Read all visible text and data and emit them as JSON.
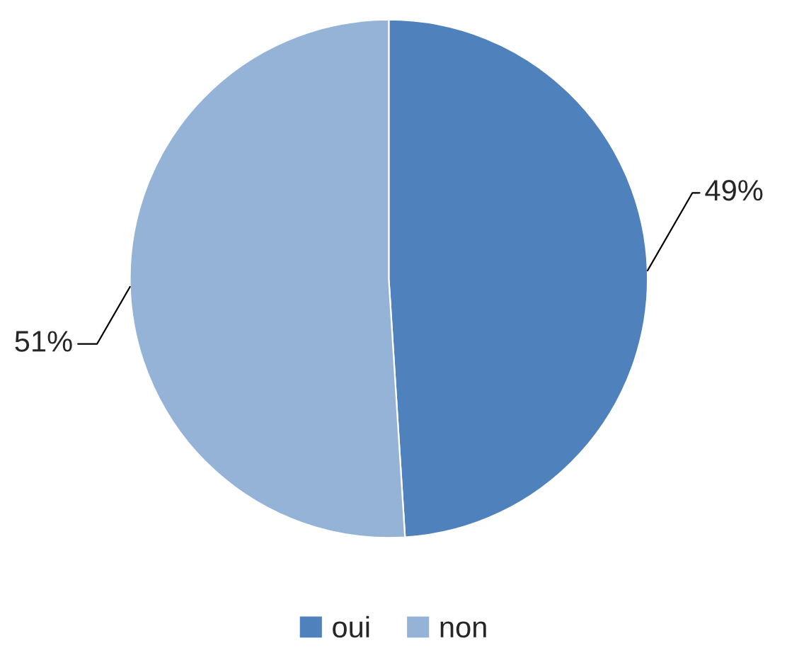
{
  "chart_data": {
    "type": "pie",
    "categories": [
      "oui",
      "non"
    ],
    "values": [
      49,
      51
    ],
    "colors": [
      "#4f81bd",
      "#95b3d7"
    ],
    "value_labels": [
      "49%",
      "51%"
    ],
    "legend": "bottom"
  }
}
